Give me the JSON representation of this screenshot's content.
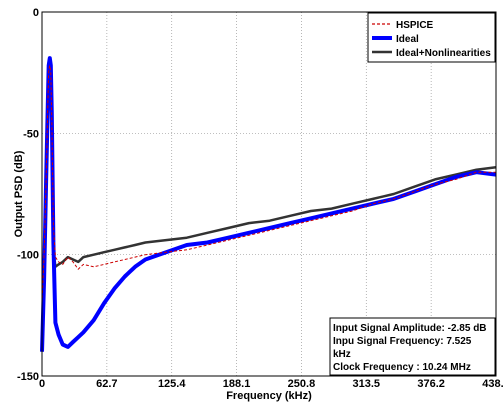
{
  "chart_data": {
    "type": "line",
    "xlabel": "Frequency (kHz)",
    "ylabel": "Output PSD (dB)",
    "xlim": [
      0,
      438.9
    ],
    "ylim": [
      -150,
      0
    ],
    "x_ticks": [
      "0",
      "62.7",
      "125.4",
      "188.1",
      "250.8",
      "313.5",
      "376.2",
      "438.9"
    ],
    "y_ticks": [
      "0",
      "-50",
      "-100",
      "-150"
    ],
    "grid": true,
    "legend_position": "top-right",
    "annotation_lines": [
      "Input Signal Amplitude: -2.85 dB",
      "Inpu Signal Frequency: 7.525",
      "kHz",
      "Clock Frequency : 10.24 MHz"
    ],
    "series": [
      {
        "name": "HSPICE",
        "color": "#cc0000",
        "style": "dashed",
        "x": [
          0,
          2,
          4,
          5.5,
          6.5,
          7.5,
          8.5,
          9.5,
          11,
          13,
          16,
          20,
          25,
          30,
          35,
          40,
          50,
          60,
          70,
          80,
          90,
          100,
          120,
          140,
          160,
          180,
          200,
          220,
          240,
          260,
          280,
          300,
          320,
          340,
          360,
          380,
          400,
          420,
          438.9
        ],
        "y": [
          -120,
          -100,
          -70,
          -40,
          -24,
          -22,
          -25,
          -45,
          -88,
          -101,
          -103,
          -104,
          -101,
          -103,
          -106,
          -104,
          -105,
          -104,
          -103,
          -102,
          -101,
          -100,
          -99,
          -98,
          -96,
          -94,
          -92,
          -90,
          -88,
          -86,
          -84,
          -82,
          -79,
          -77,
          -74,
          -71,
          -69,
          -66,
          -66
        ]
      },
      {
        "name": "Ideal",
        "color": "#0000ff",
        "style": "solid",
        "x": [
          0,
          2,
          4,
          5.5,
          6.5,
          7.5,
          8.5,
          9.5,
          11,
          13,
          16,
          20,
          25,
          30,
          35,
          40,
          50,
          60,
          70,
          80,
          90,
          100,
          120,
          140,
          160,
          180,
          200,
          220,
          240,
          260,
          280,
          300,
          320,
          340,
          360,
          380,
          400,
          420,
          438.9
        ],
        "y": [
          -140,
          -110,
          -70,
          -40,
          -22,
          -19,
          -22,
          -42,
          -95,
          -128,
          -133,
          -137,
          -138,
          -136,
          -134,
          -132,
          -127,
          -120,
          -114,
          -109,
          -105,
          -102,
          -99,
          -96,
          -95,
          -93,
          -91,
          -89,
          -87,
          -85,
          -83,
          -81,
          -79,
          -77,
          -74,
          -71,
          -68,
          -66,
          -67
        ]
      },
      {
        "name": "Ideal+Nonlinearities",
        "color": "#333333",
        "style": "solid",
        "x": [
          0,
          2,
          4,
          5.5,
          6.5,
          7.5,
          8.5,
          9.5,
          11,
          13,
          16,
          20,
          25,
          30,
          35,
          40,
          50,
          60,
          70,
          80,
          90,
          100,
          120,
          140,
          160,
          180,
          200,
          220,
          240,
          260,
          280,
          300,
          320,
          340,
          360,
          380,
          400,
          420,
          438.9
        ],
        "y": [
          -140,
          -108,
          -70,
          -40,
          -23,
          -20,
          -23,
          -44,
          -98,
          -105,
          -104,
          -103,
          -101,
          -102,
          -103,
          -101,
          -100,
          -99,
          -98,
          -97,
          -96,
          -95,
          -94,
          -93,
          -91,
          -89,
          -87,
          -86,
          -84,
          -82,
          -81,
          -79,
          -77,
          -75,
          -72,
          -69,
          -67,
          -65,
          -64
        ]
      }
    ]
  }
}
